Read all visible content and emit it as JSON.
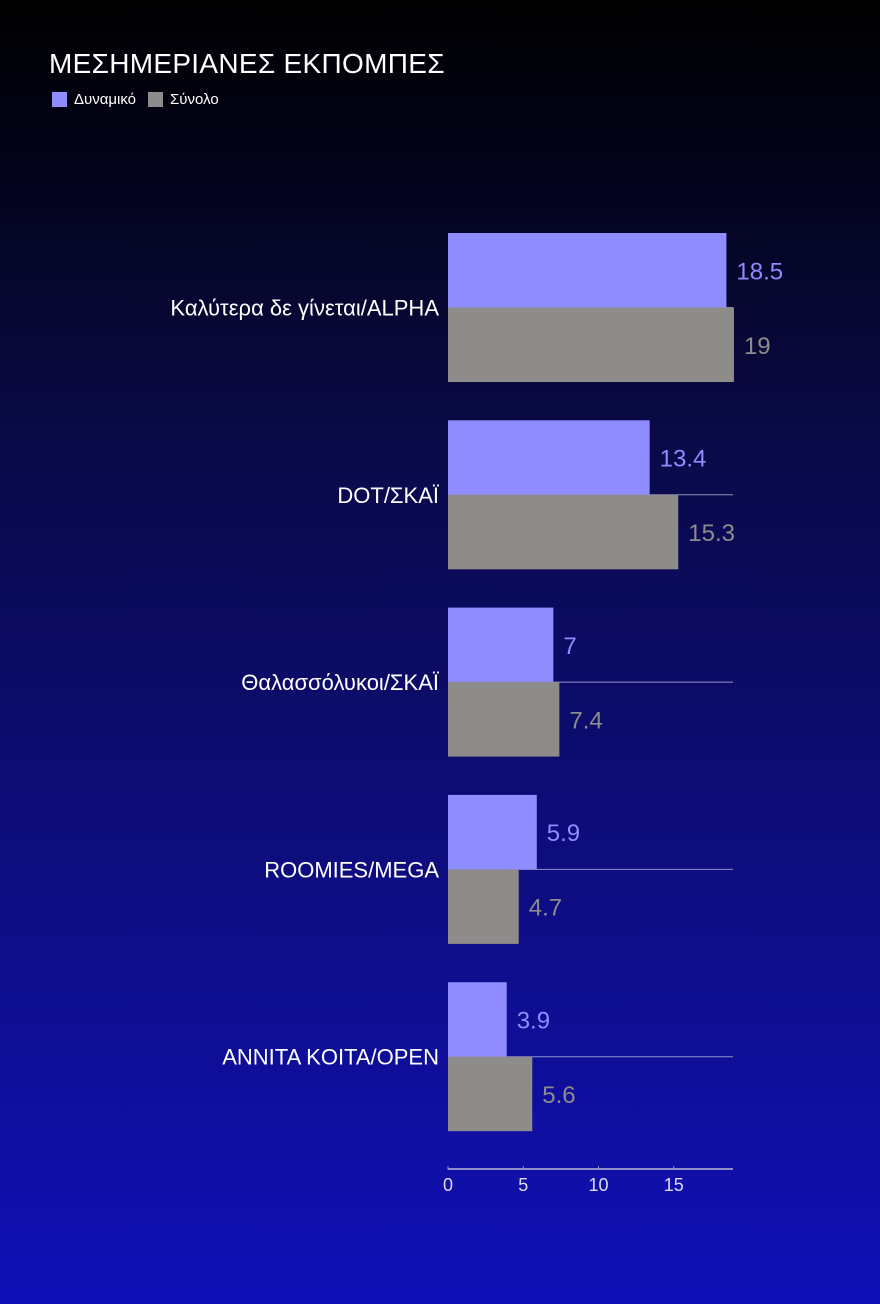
{
  "chart_data": {
    "type": "bar",
    "orientation": "horizontal",
    "title": "ΜΕΣΗΜΕΡΙΑΝΕΣ ΕΚΠΟΜΠΕΣ",
    "categories": [
      "Καλύτερα δε γίνεται/ALPHA",
      "DOT/ΣΚΑΪ",
      "Θαλασσόλυκοι/ΣΚΑΪ",
      "ROOMIES/MEGA",
      "ANNITA KOITA/OPEN"
    ],
    "series": [
      {
        "name": "Δυναμικό",
        "color": "#8f8cff",
        "values": [
          18.5,
          13.4,
          7,
          5.9,
          3.9
        ]
      },
      {
        "name": "Σύνολο",
        "color": "#8e8b8b",
        "values": [
          19,
          15.3,
          7.4,
          4.7,
          5.6
        ]
      }
    ],
    "xticks": [
      0,
      5,
      10,
      15
    ],
    "xlim": [
      0,
      19
    ],
    "legend_position": "top-left",
    "grid": false
  }
}
